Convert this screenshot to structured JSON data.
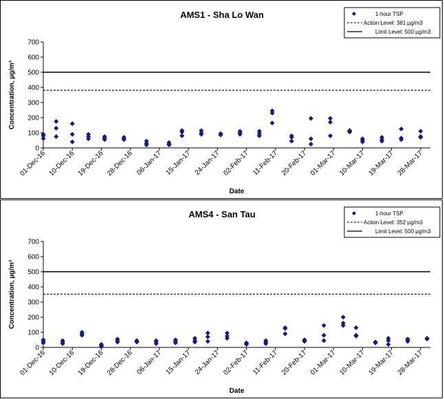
{
  "chart_data": [
    {
      "type": "scatter",
      "title": "AMS1 - Sha Lo Wan",
      "xlabel": "Date",
      "ylabel": "Concentration, µg/m³",
      "ylim": [
        0,
        700
      ],
      "yticks": [
        0,
        100,
        200,
        300,
        400,
        500,
        600,
        700
      ],
      "xlim": [
        "2016-12-01",
        "2017-03-31"
      ],
      "xtick_labels": [
        "01-Dec-16",
        "10-Dec-16",
        "19-Dec-16",
        "28-Dec-16",
        "06-Jan-17",
        "15-Jan-17",
        "24-Jan-17",
        "02-Feb-17",
        "11-Feb-17",
        "20-Feb-17",
        "01-Mar-17",
        "10-Mar-17",
        "19-Mar-17",
        "28-Mar-17"
      ],
      "grid": false,
      "legend_position": "top-right",
      "legend": {
        "tsp": "1-hour TSP",
        "action": "Action Level: 381 µg/m3",
        "limit": "Limit Level: 500 µg/m3"
      },
      "action_level": 381,
      "limit_level": 500,
      "colors": {
        "marker": "#1a1a7e",
        "lines": "#000000"
      },
      "series": [
        {
          "name": "1-hour TSP",
          "x": [
            "2016-12-01",
            "2016-12-01",
            "2016-12-01",
            "2016-12-05",
            "2016-12-05",
            "2016-12-05",
            "2016-12-10",
            "2016-12-10",
            "2016-12-10",
            "2016-12-15",
            "2016-12-15",
            "2016-12-15",
            "2016-12-20",
            "2016-12-20",
            "2016-12-20",
            "2016-12-26",
            "2016-12-26",
            "2016-12-26",
            "2017-01-02",
            "2017-01-02",
            "2017-01-02",
            "2017-01-09",
            "2017-01-09",
            "2017-01-09",
            "2017-01-13",
            "2017-01-13",
            "2017-01-13",
            "2017-01-19",
            "2017-01-19",
            "2017-01-19",
            "2017-01-25",
            "2017-01-25",
            "2017-01-25",
            "2017-01-31",
            "2017-01-31",
            "2017-01-31",
            "2017-02-06",
            "2017-02-06",
            "2017-02-06",
            "2017-02-10",
            "2017-02-10",
            "2017-02-10",
            "2017-02-16",
            "2017-02-16",
            "2017-02-16",
            "2017-02-22",
            "2017-02-22",
            "2017-02-22",
            "2017-02-28",
            "2017-02-28",
            "2017-02-28",
            "2017-03-06",
            "2017-03-06",
            "2017-03-06",
            "2017-03-10",
            "2017-03-10",
            "2017-03-10",
            "2017-03-16",
            "2017-03-16",
            "2017-03-16",
            "2017-03-22",
            "2017-03-22",
            "2017-03-22",
            "2017-03-28",
            "2017-03-28",
            "2017-03-28"
          ],
          "y": [
            90,
            80,
            62,
            175,
            130,
            75,
            160,
            90,
            40,
            90,
            75,
            60,
            75,
            65,
            55,
            70,
            60,
            55,
            45,
            30,
            20,
            35,
            25,
            20,
            115,
            105,
            80,
            115,
            100,
            90,
            95,
            90,
            85,
            110,
            100,
            90,
            110,
            95,
            80,
            245,
            230,
            165,
            80,
            70,
            45,
            195,
            60,
            25,
            195,
            170,
            80,
            115,
            110,
            105,
            60,
            50,
            40,
            70,
            55,
            45,
            125,
            65,
            55,
            110,
            75,
            70
          ]
        }
      ]
    },
    {
      "type": "scatter",
      "title": "AMS4 - San Tau",
      "xlabel": "Date",
      "ylabel": "Concentration, µg/m³",
      "ylim": [
        0,
        700
      ],
      "yticks": [
        0,
        100,
        200,
        300,
        400,
        500,
        600,
        700
      ],
      "xlim": [
        "2016-12-01",
        "2017-03-31"
      ],
      "xtick_labels": [
        "01-Dec-16",
        "10-Dec-16",
        "19-Dec-16",
        "28-Dec-16",
        "06-Jan-17",
        "15-Jan-17",
        "24-Jan-17",
        "02-Feb-17",
        "11-Feb-17",
        "20-Feb-17",
        "01-Mar-17",
        "10-Mar-17",
        "19-Mar-17",
        "28-Mar-17"
      ],
      "grid": false,
      "legend_position": "top-right",
      "legend": {
        "tsp": "1-hour TSP",
        "action": "Action Level: 352 µg/m3",
        "limit": "Limit Level: 500 µg/m3"
      },
      "action_level": 352,
      "limit_level": 500,
      "colors": {
        "marker": "#1a1a7e",
        "lines": "#000000"
      },
      "series": [
        {
          "name": "1-hour TSP",
          "x": [
            "2016-12-01",
            "2016-12-01",
            "2016-12-01",
            "2016-12-07",
            "2016-12-07",
            "2016-12-07",
            "2016-12-13",
            "2016-12-13",
            "2016-12-13",
            "2016-12-19",
            "2016-12-19",
            "2016-12-19",
            "2016-12-24",
            "2016-12-24",
            "2016-12-24",
            "2016-12-30",
            "2016-12-30",
            "2016-12-30",
            "2017-01-05",
            "2017-01-05",
            "2017-01-05",
            "2017-01-11",
            "2017-01-11",
            "2017-01-11",
            "2017-01-17",
            "2017-01-17",
            "2017-01-17",
            "2017-01-21",
            "2017-01-21",
            "2017-01-21",
            "2017-01-27",
            "2017-01-27",
            "2017-01-27",
            "2017-02-02",
            "2017-02-02",
            "2017-02-02",
            "2017-02-08",
            "2017-02-08",
            "2017-02-08",
            "2017-02-14",
            "2017-02-14",
            "2017-02-14",
            "2017-02-20",
            "2017-02-20",
            "2017-02-20",
            "2017-02-26",
            "2017-02-26",
            "2017-02-26",
            "2017-03-04",
            "2017-03-04",
            "2017-03-04",
            "2017-03-08",
            "2017-03-08",
            "2017-03-08",
            "2017-03-14",
            "2017-03-14",
            "2017-03-14",
            "2017-03-18",
            "2017-03-18",
            "2017-03-18",
            "2017-03-24",
            "2017-03-24",
            "2017-03-24",
            "2017-03-30",
            "2017-03-30"
          ],
          "y": [
            50,
            40,
            30,
            45,
            35,
            25,
            100,
            90,
            80,
            20,
            12,
            5,
            55,
            45,
            35,
            45,
            40,
            35,
            45,
            35,
            25,
            50,
            40,
            30,
            60,
            45,
            35,
            95,
            70,
            40,
            95,
            75,
            60,
            30,
            25,
            20,
            45,
            35,
            25,
            130,
            125,
            90,
            50,
            45,
            40,
            145,
            80,
            45,
            200,
            160,
            145,
            130,
            80,
            75,
            35,
            35,
            30,
            60,
            45,
            20,
            55,
            50,
            40,
            60,
            55
          ]
        }
      ]
    }
  ]
}
